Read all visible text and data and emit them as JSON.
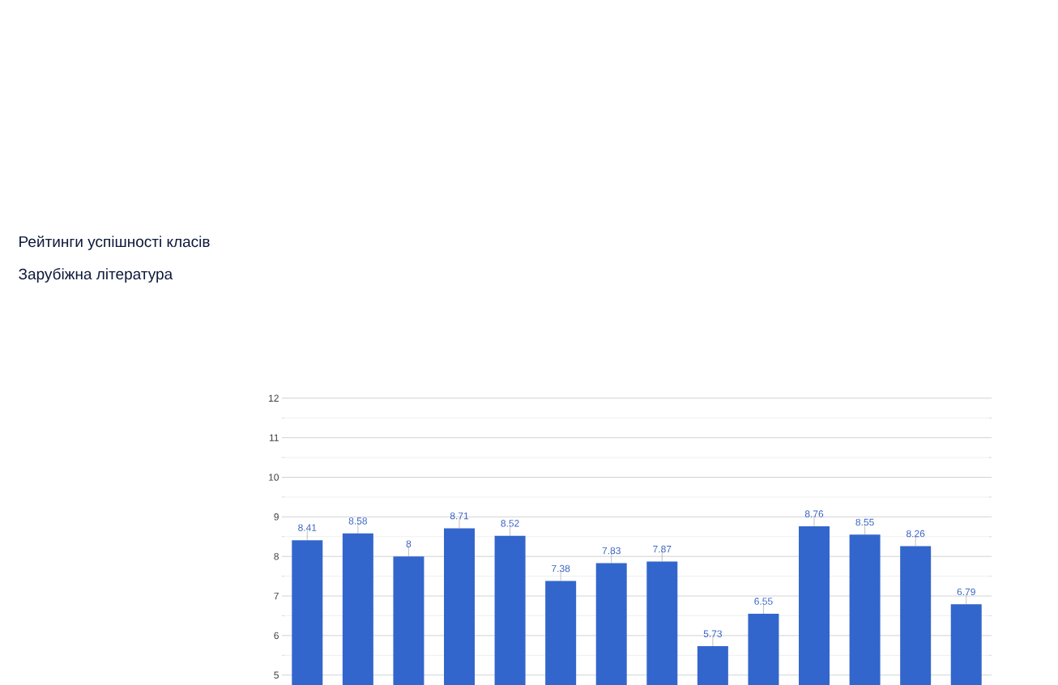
{
  "chart_data": {
    "type": "bar",
    "title": "Рейтинги успішності класів",
    "subtitle": "Зарубіжна література",
    "categories": [
      null,
      null,
      null,
      null,
      null,
      null,
      null,
      null,
      null,
      null,
      null,
      null,
      null,
      null
    ],
    "values": [
      8.41,
      8.58,
      8,
      8.71,
      8.52,
      7.38,
      7.83,
      7.87,
      5.73,
      6.55,
      8.76,
      8.55,
      8.26,
      6.79
    ],
    "color": "#3366cc",
    "ylim": [
      4.75,
      12
    ],
    "yticks": [
      5,
      6,
      7,
      8,
      9,
      10,
      11,
      12
    ],
    "grid": "y",
    "tick_labels": "y",
    "data_labels": true
  }
}
